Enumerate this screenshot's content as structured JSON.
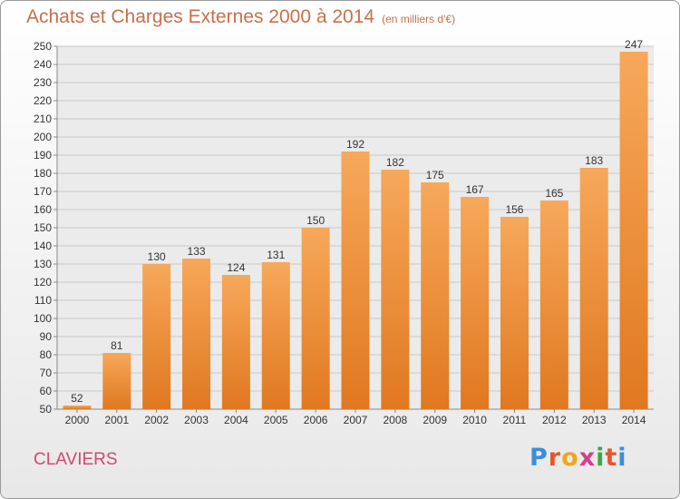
{
  "title": "Achats et Charges Externes 2000 à 2014",
  "subtitle": "(en milliers d'€)",
  "commune": "CLAVIERS",
  "brand": {
    "letters": [
      "P",
      "r",
      "o",
      "x",
      "i",
      "t",
      "i"
    ],
    "colors": [
      "#3b8fd8",
      "#e4572e",
      "#f2a51a",
      "#d93b8a",
      "#3aa845",
      "#e4572e",
      "#3b8fd8"
    ]
  },
  "colors": {
    "bar_top": "#f7a85a",
    "bar_bottom": "#e07820",
    "grid": "#c8c8c8",
    "plot_bg": "#ebebeb",
    "title": "#c8704a",
    "commune": "#d04a70"
  },
  "chart_data": {
    "type": "bar",
    "title": "Achats et Charges Externes 2000 à 2014",
    "subtitle": "(en milliers d'€)",
    "categories": [
      "2000",
      "2001",
      "2002",
      "2003",
      "2004",
      "2005",
      "2006",
      "2007",
      "2008",
      "2009",
      "2010",
      "2011",
      "2012",
      "2013",
      "2014"
    ],
    "values": [
      52,
      81,
      130,
      133,
      124,
      131,
      150,
      192,
      182,
      175,
      167,
      156,
      165,
      183,
      247
    ],
    "ylim": [
      50,
      250
    ],
    "ytick_step": 10,
    "grid": true,
    "legend": "none"
  }
}
